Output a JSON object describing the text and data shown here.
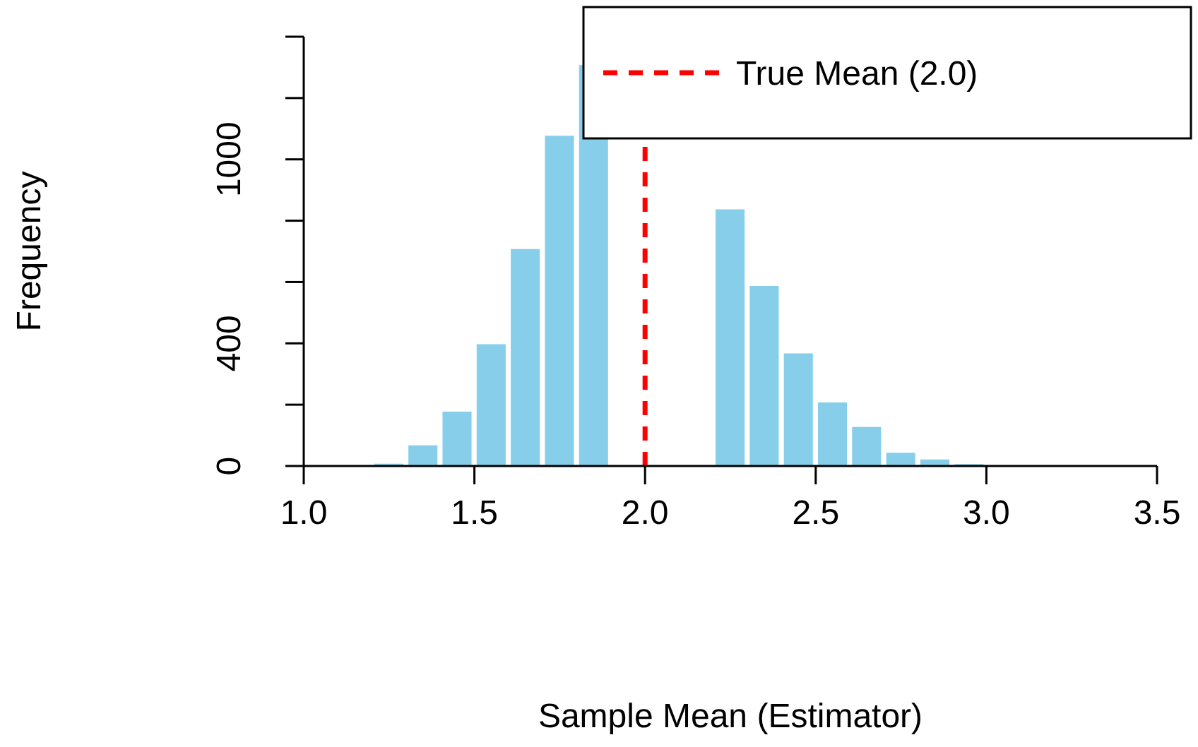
{
  "chart_data": {
    "type": "histogram",
    "xlabel": "Sample Mean (Estimator)",
    "ylabel": "Frequency",
    "bins": [
      1.2,
      1.3,
      1.4,
      1.5,
      1.6,
      1.7,
      1.8,
      1.9,
      2.0,
      2.1,
      2.2,
      2.3,
      2.4,
      2.5,
      2.6,
      2.7,
      2.8,
      2.9,
      3.0
    ],
    "values": [
      10,
      70,
      180,
      400,
      710,
      1080,
      1310,
      null,
      null,
      null,
      840,
      590,
      370,
      210,
      130,
      46,
      24,
      9
    ],
    "color": "#87ceeb",
    "xlim": [
      1.0,
      3.5
    ],
    "xticks": [
      {
        "value": 1.0,
        "label": "1.0"
      },
      {
        "value": 1.5,
        "label": "1.5"
      },
      {
        "value": 2.0,
        "label": "2.0"
      },
      {
        "value": 2.5,
        "label": "2.5"
      },
      {
        "value": 3.0,
        "label": "3.0"
      },
      {
        "value": 3.5,
        "label": "3.5"
      }
    ],
    "ylim": [
      0,
      1400
    ],
    "yticks": [
      0,
      {
        "value": 200,
        "label": null
      },
      400,
      {
        "value": 600,
        "label": null
      },
      {
        "value": 800,
        "label": null
      },
      1000,
      {
        "value": 1200,
        "label": null
      },
      {
        "value": 1400,
        "label": null
      }
    ],
    "ref_lines": [
      {
        "axis": "x",
        "value": 2.0,
        "label": "True Mean (2.0)",
        "color": "#ff0000",
        "line_style": "dashed"
      }
    ],
    "legend": "top right",
    "grid": false
  }
}
